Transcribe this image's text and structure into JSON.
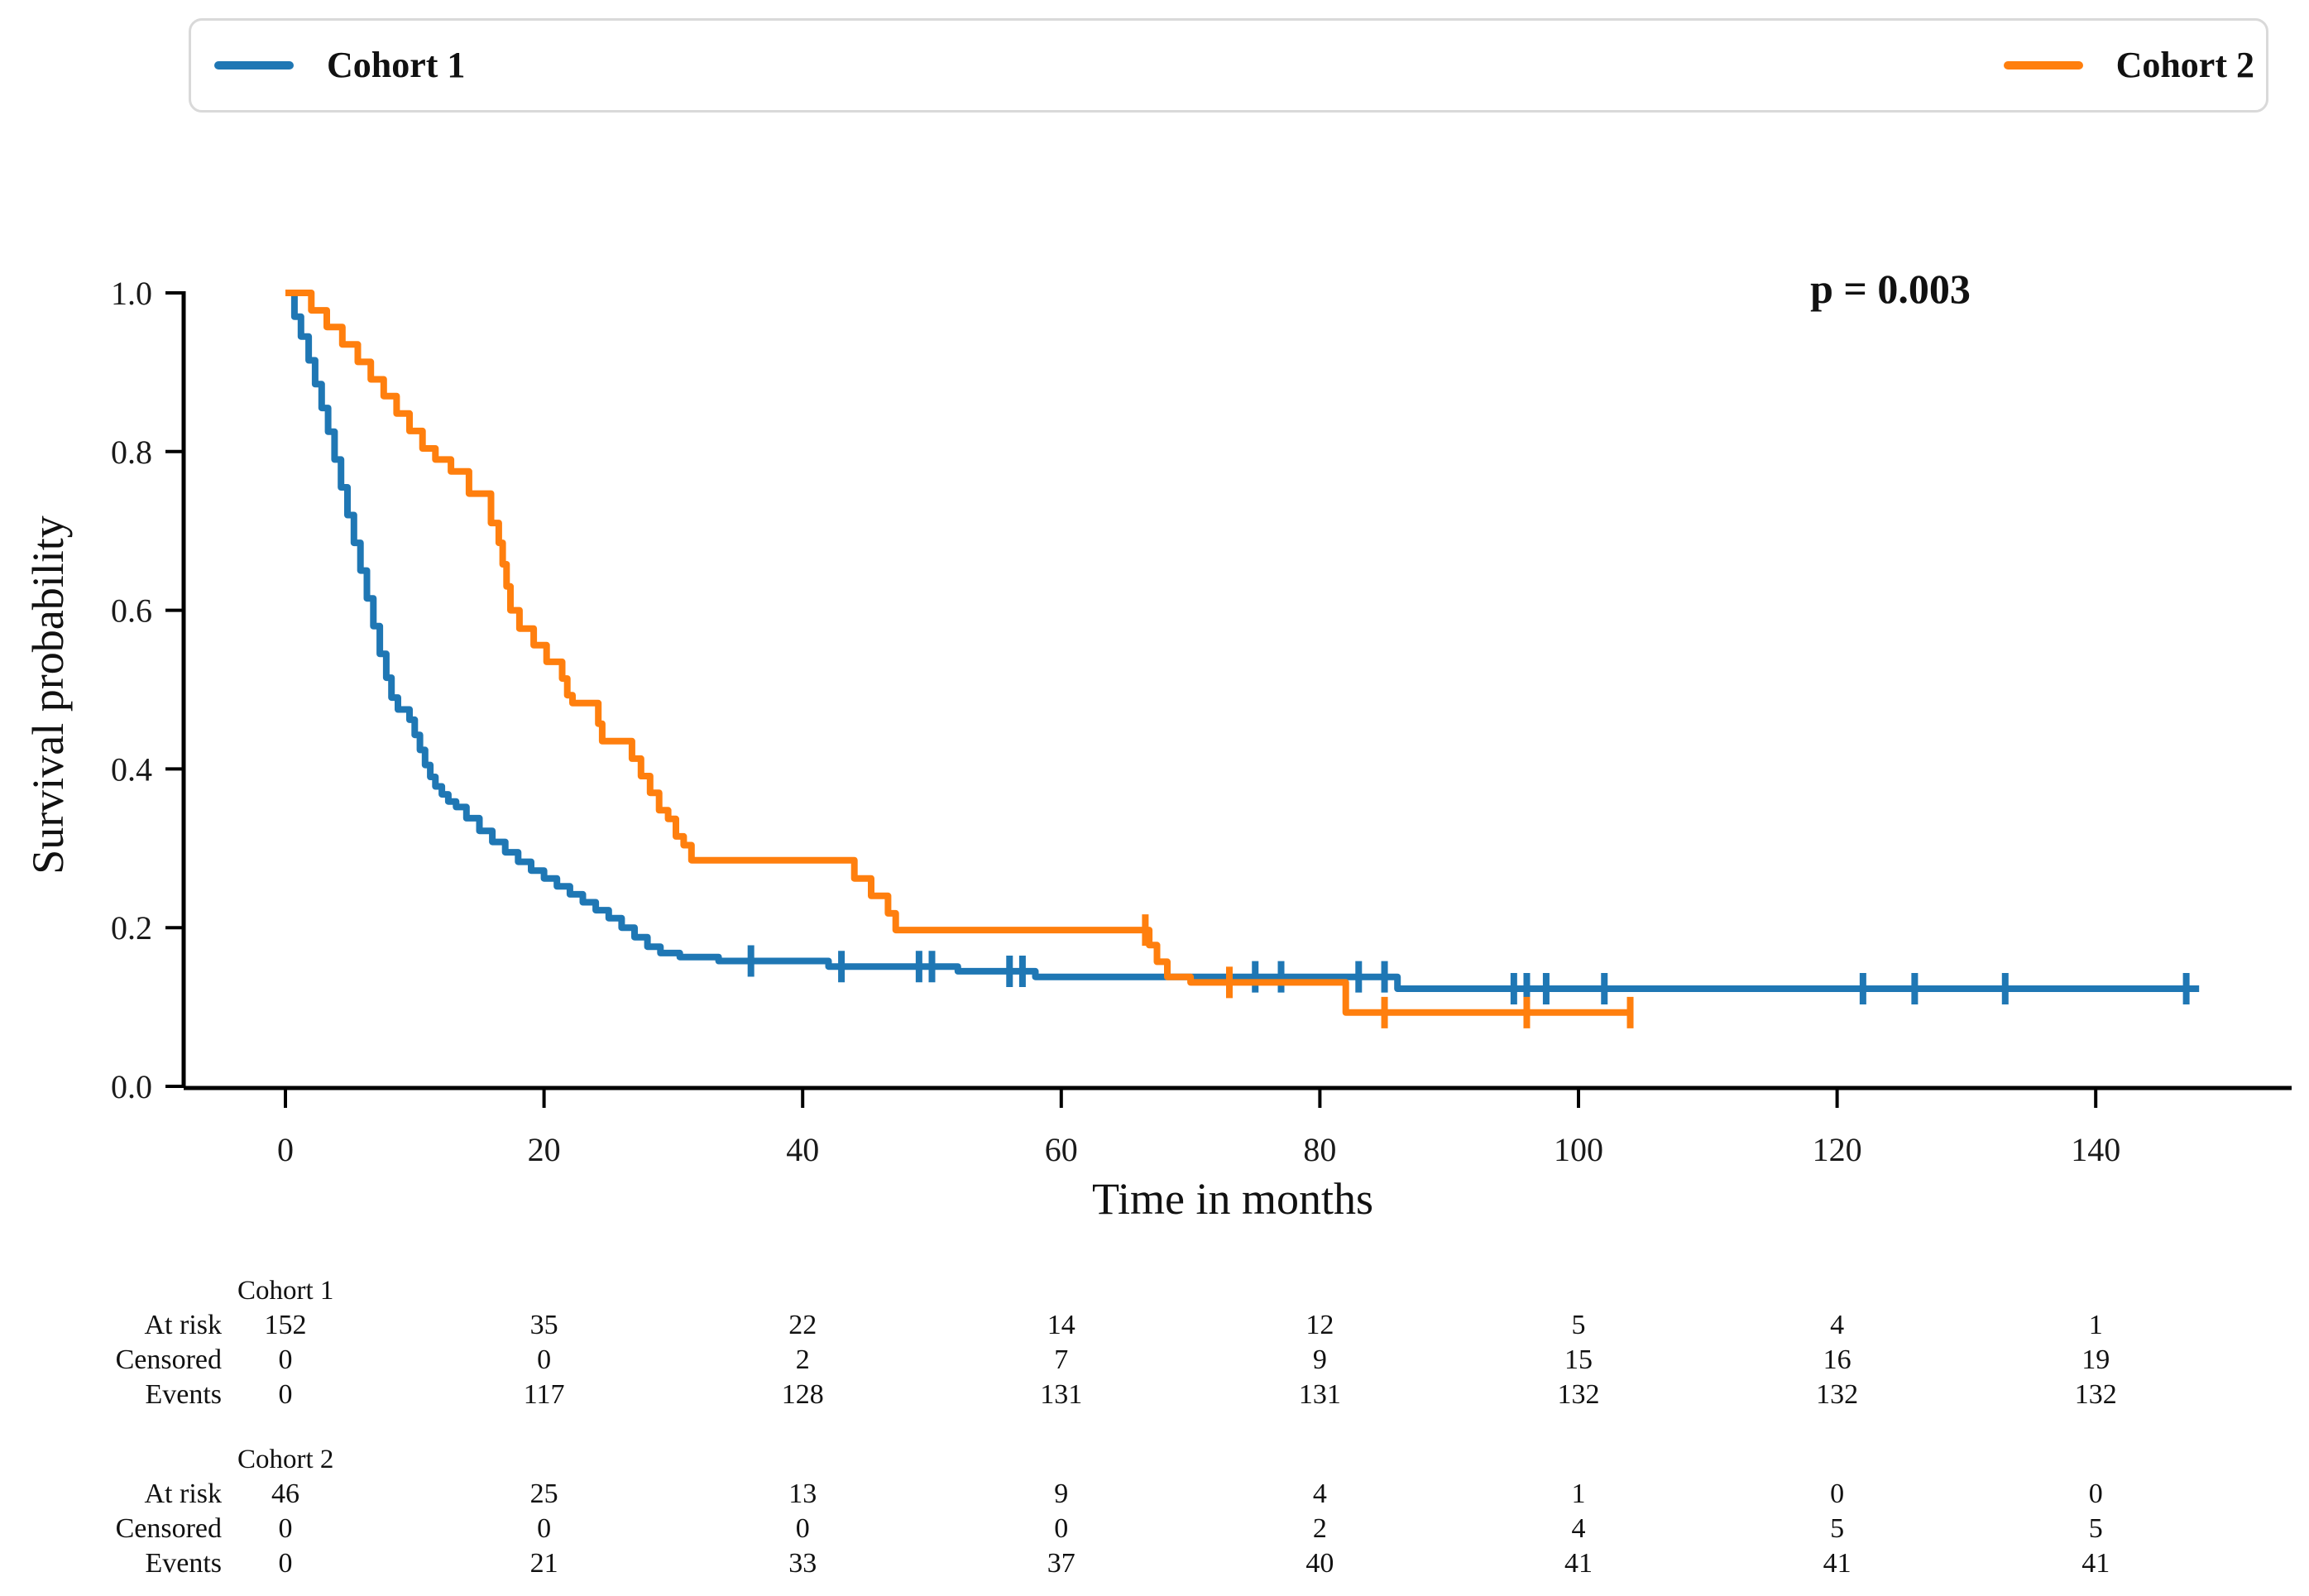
{
  "legend": {
    "items": [
      {
        "label": "Cohort 1",
        "color": "#1f77b4"
      },
      {
        "label": "Cohort 2",
        "color": "#ff7f0e"
      }
    ]
  },
  "annotation": {
    "p_value": "p = 0.003"
  },
  "axes": {
    "ylabel": "Survival probability",
    "xlabel": "Time in months",
    "yticks": [
      "0.0",
      "0.2",
      "0.4",
      "0.6",
      "0.8",
      "1.0"
    ],
    "xticks": [
      "0",
      "20",
      "40",
      "60",
      "80",
      "100",
      "120",
      "140"
    ]
  },
  "chart_data": {
    "type": "line",
    "subtype": "kaplan-meier-step",
    "title": "",
    "xlabel": "Time in months",
    "ylabel": "Survival probability",
    "xlim": [
      -8,
      155
    ],
    "ylim": [
      0.0,
      1.0
    ],
    "xticks": [
      0,
      20,
      40,
      60,
      80,
      100,
      120,
      140
    ],
    "yticks": [
      0.0,
      0.2,
      0.4,
      0.6,
      0.8,
      1.0
    ],
    "grid": false,
    "legend_position": "top",
    "annotation_text": "p = 0.003",
    "series": [
      {
        "name": "Cohort 1",
        "color": "#1f77b4",
        "step": true,
        "points": [
          [
            0,
            1.0
          ],
          [
            0.7,
            0.97
          ],
          [
            1.2,
            0.945
          ],
          [
            1.8,
            0.915
          ],
          [
            2.3,
            0.885
          ],
          [
            2.8,
            0.855
          ],
          [
            3.3,
            0.825
          ],
          [
            3.8,
            0.79
          ],
          [
            4.3,
            0.755
          ],
          [
            4.8,
            0.72
          ],
          [
            5.3,
            0.685
          ],
          [
            5.8,
            0.65
          ],
          [
            6.3,
            0.615
          ],
          [
            6.8,
            0.58
          ],
          [
            7.3,
            0.545
          ],
          [
            7.8,
            0.515
          ],
          [
            8.2,
            0.49
          ],
          [
            8.7,
            0.475
          ],
          [
            9.6,
            0.462
          ],
          [
            10,
            0.443
          ],
          [
            10.4,
            0.424
          ],
          [
            10.8,
            0.405
          ],
          [
            11.2,
            0.39
          ],
          [
            11.6,
            0.378
          ],
          [
            12.1,
            0.368
          ],
          [
            12.6,
            0.359
          ],
          [
            13.2,
            0.352
          ],
          [
            14,
            0.338
          ],
          [
            15,
            0.322
          ],
          [
            16,
            0.308
          ],
          [
            17,
            0.295
          ],
          [
            18,
            0.283
          ],
          [
            19,
            0.272
          ],
          [
            20,
            0.262
          ],
          [
            21,
            0.252
          ],
          [
            22,
            0.242
          ],
          [
            23,
            0.232
          ],
          [
            24,
            0.222
          ],
          [
            25,
            0.212
          ],
          [
            26,
            0.2
          ],
          [
            27,
            0.188
          ],
          [
            28,
            0.176
          ],
          [
            29,
            0.168
          ],
          [
            30.5,
            0.163
          ],
          [
            33.5,
            0.158
          ],
          [
            42,
            0.151
          ],
          [
            52,
            0.145
          ],
          [
            58,
            0.138
          ],
          [
            86,
            0.123
          ],
          [
            148,
            0.123
          ]
        ],
        "censor_times": [
          36,
          43,
          49,
          50,
          56,
          57,
          75,
          77,
          83,
          85,
          95,
          96,
          97.5,
          102,
          122,
          126,
          133,
          147
        ]
      },
      {
        "name": "Cohort 2",
        "color": "#ff7f0e",
        "step": true,
        "points": [
          [
            0,
            1.0
          ],
          [
            2,
            0.978
          ],
          [
            3.2,
            0.957
          ],
          [
            4.4,
            0.935
          ],
          [
            5.6,
            0.913
          ],
          [
            6.6,
            0.891
          ],
          [
            7.6,
            0.87
          ],
          [
            8.6,
            0.848
          ],
          [
            9.6,
            0.826
          ],
          [
            10.6,
            0.804
          ],
          [
            11.6,
            0.79
          ],
          [
            12.8,
            0.775
          ],
          [
            14.2,
            0.747
          ],
          [
            15.9,
            0.71
          ],
          [
            16.5,
            0.685
          ],
          [
            16.8,
            0.658
          ],
          [
            17.1,
            0.63
          ],
          [
            17.4,
            0.6
          ],
          [
            18.1,
            0.577
          ],
          [
            19.2,
            0.556
          ],
          [
            20.2,
            0.535
          ],
          [
            21.4,
            0.514
          ],
          [
            21.8,
            0.493
          ],
          [
            22.2,
            0.483
          ],
          [
            24.2,
            0.457
          ],
          [
            24.5,
            0.435
          ],
          [
            26.8,
            0.413
          ],
          [
            27.5,
            0.391
          ],
          [
            28.2,
            0.37
          ],
          [
            28.9,
            0.348
          ],
          [
            29.6,
            0.337
          ],
          [
            30.2,
            0.315
          ],
          [
            30.8,
            0.304
          ],
          [
            31.4,
            0.285
          ],
          [
            44,
            0.262
          ],
          [
            45.3,
            0.24
          ],
          [
            46.6,
            0.218
          ],
          [
            47.2,
            0.197
          ],
          [
            66.8,
            0.178
          ],
          [
            67.4,
            0.157
          ],
          [
            68.2,
            0.138
          ],
          [
            70,
            0.131
          ],
          [
            82,
            0.093
          ],
          [
            104,
            0.093
          ]
        ],
        "censor_times": [
          66.5,
          73,
          85,
          96,
          104
        ]
      }
    ]
  },
  "risk_table": {
    "columns_months": [
      0,
      20,
      40,
      60,
      80,
      100,
      120,
      140
    ],
    "row_labels": [
      "At risk",
      "Censored",
      "Events"
    ],
    "groups": [
      {
        "name": "Cohort 1",
        "rows": {
          "at_risk": [
            152,
            35,
            22,
            14,
            12,
            5,
            4,
            1
          ],
          "censored": [
            0,
            0,
            2,
            7,
            9,
            15,
            16,
            19
          ],
          "events": [
            0,
            117,
            128,
            131,
            131,
            132,
            132,
            132
          ]
        }
      },
      {
        "name": "Cohort 2",
        "rows": {
          "at_risk": [
            46,
            25,
            13,
            9,
            4,
            1,
            0,
            0
          ],
          "censored": [
            0,
            0,
            0,
            0,
            2,
            4,
            5,
            5
          ],
          "events": [
            0,
            21,
            33,
            37,
            40,
            41,
            41,
            41
          ]
        }
      }
    ]
  }
}
